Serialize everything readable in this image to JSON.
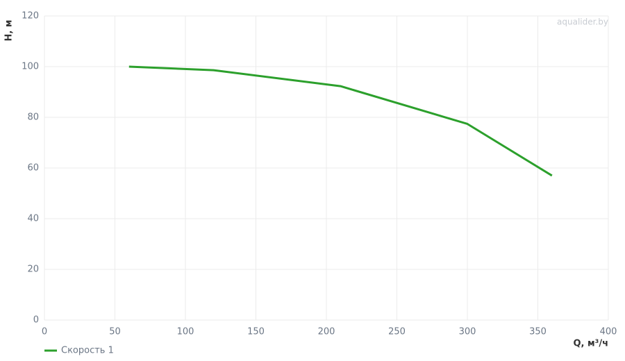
{
  "chart_data": {
    "type": "line",
    "watermark": "aqualider.by",
    "x_label": "Q, м³/ч",
    "y_label": "H, м",
    "x": [
      60,
      120,
      210,
      300,
      360
    ],
    "series": [
      {
        "name": "Скорость 1",
        "color": "#2ca02c",
        "values": [
          100,
          98.6,
          92.3,
          77.4,
          57
        ]
      }
    ],
    "xlim": [
      0,
      400
    ],
    "xticks": [
      0,
      50,
      100,
      150,
      200,
      250,
      300,
      350,
      400
    ],
    "ylim": [
      0,
      120
    ],
    "yticks": [
      0,
      20,
      40,
      60,
      80,
      100,
      120
    ],
    "grid": true
  }
}
